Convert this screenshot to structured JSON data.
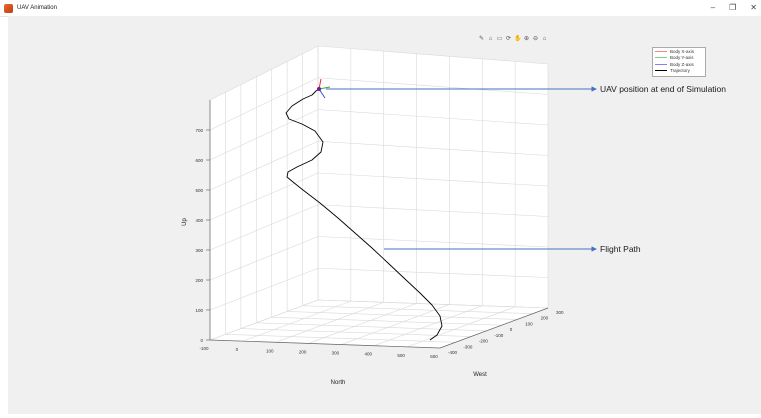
{
  "window": {
    "title": "UAV Animation",
    "minimize_glyph": "–",
    "maximize_glyph": "❐",
    "close_glyph": "✕"
  },
  "toolbar": {
    "icons": [
      "brush-icon",
      "datatip-icon",
      "insert-icon",
      "rotate-icon",
      "pan-icon",
      "zoom-in-icon",
      "zoom-out-icon",
      "home-icon"
    ],
    "glyphs": [
      "✎",
      "⌂",
      "▭",
      "⟳",
      "✋",
      "⊕",
      "⊖",
      "⌂"
    ]
  },
  "legend": {
    "entries": [
      {
        "label": "Body X-axis",
        "color": "#ff8080"
      },
      {
        "label": "Body Y-axis",
        "color": "#80d080"
      },
      {
        "label": "Body Z-axis",
        "color": "#8080ff"
      },
      {
        "label": "Trajectory",
        "color": "#000000"
      }
    ]
  },
  "annotations": {
    "end_position": "UAV position at end of Simulation",
    "flight_path": "Flight Path",
    "arrow_color": "#4472c4"
  },
  "chart_data": {
    "type": "line",
    "projection": "3d",
    "grid": true,
    "axes": {
      "z": {
        "label": "Up",
        "ticks": [
          "0",
          "100",
          "200",
          "300",
          "400",
          "500",
          "600",
          "700"
        ],
        "lim": [
          0,
          800
        ]
      },
      "x": {
        "label": "North",
        "ticks": [
          "-100",
          "0",
          "100",
          "200",
          "300",
          "400",
          "500",
          "600"
        ],
        "lim": [
          -100,
          650
        ]
      },
      "y": {
        "label": "West",
        "ticks": [
          "-400",
          "-300",
          "-200",
          "-100",
          "0",
          "100",
          "200",
          "300"
        ],
        "lim": [
          -400,
          300
        ]
      }
    },
    "series": [
      {
        "name": "Trajectory",
        "color": "#000000",
        "points_projected": [
          [
            430,
            340
          ],
          [
            437,
            335
          ],
          [
            442,
            326
          ],
          [
            440,
            316
          ],
          [
            432,
            305
          ],
          [
            420,
            293
          ],
          [
            405,
            279
          ],
          [
            388,
            263
          ],
          [
            372,
            248
          ],
          [
            355,
            233
          ],
          [
            338,
            218
          ],
          [
            320,
            203
          ],
          [
            303,
            190
          ],
          [
            293,
            182
          ],
          [
            287,
            177
          ],
          [
            288,
            172
          ],
          [
            297,
            167
          ],
          [
            312,
            160
          ],
          [
            321,
            152
          ],
          [
            323,
            142
          ],
          [
            315,
            131
          ],
          [
            302,
            124
          ],
          [
            289,
            119
          ],
          [
            286,
            113
          ],
          [
            292,
            106
          ],
          [
            303,
            99
          ],
          [
            312,
            95
          ],
          [
            316,
            91
          ],
          [
            319,
            89
          ]
        ]
      }
    ]
  }
}
